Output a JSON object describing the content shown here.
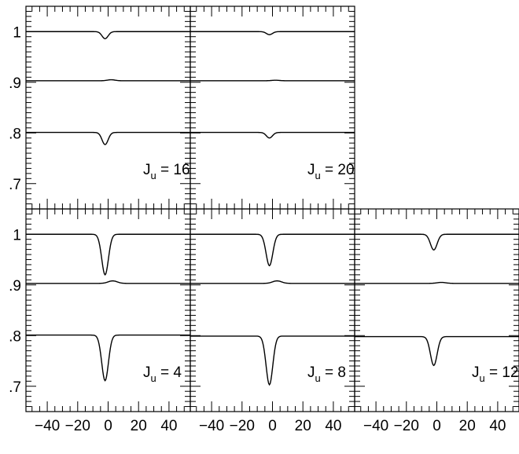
{
  "chart_data": {
    "type": "line",
    "xlim": [
      -54,
      54
    ],
    "ylim": [
      0.65,
      1.05
    ],
    "x_ticks": [
      -40,
      -20,
      0,
      20,
      40
    ],
    "x_tick_labels": [
      "−40",
      "−20",
      "0",
      "20",
      "40"
    ],
    "y_ticks": [
      0.7,
      0.8,
      0.9,
      1.0
    ],
    "y_tick_labels": [
      ".7",
      ".8",
      ".9",
      "1"
    ],
    "panels": [
      {
        "label_main": "J",
        "label_sub": "u",
        "label_value": "= 16",
        "row": 0,
        "col": 0,
        "series": [
          {
            "baseline": 1.0,
            "center": -2,
            "depth": -0.014,
            "width": 2.0
          },
          {
            "baseline": 0.903,
            "center": 2,
            "depth": 0.002,
            "width": 2.5
          },
          {
            "baseline": 0.801,
            "center": -2,
            "depth": -0.024,
            "width": 2.0
          }
        ]
      },
      {
        "label_main": "J",
        "label_sub": "u",
        "label_value": "= 20",
        "row": 0,
        "col": 1,
        "series": [
          {
            "baseline": 1.0,
            "center": -2,
            "depth": -0.006,
            "width": 2.0
          },
          {
            "baseline": 0.903,
            "center": 2,
            "depth": 0.001,
            "width": 2.5
          },
          {
            "baseline": 0.801,
            "center": -2,
            "depth": -0.011,
            "width": 2.0
          }
        ]
      },
      {
        "label_main": "J",
        "label_sub": "u",
        "label_value": "= 4",
        "row": 1,
        "col": 0,
        "series": [
          {
            "baseline": 1.0,
            "center": -2,
            "depth": -0.08,
            "width": 2.2
          },
          {
            "baseline": 0.903,
            "center": 3,
            "depth": 0.005,
            "width": 3.0
          },
          {
            "baseline": 0.801,
            "center": -2,
            "depth": -0.09,
            "width": 2.2
          }
        ]
      },
      {
        "label_main": "J",
        "label_sub": "u",
        "label_value": "= 8",
        "row": 1,
        "col": 1,
        "series": [
          {
            "baseline": 1.0,
            "center": -2,
            "depth": -0.062,
            "width": 2.2
          },
          {
            "baseline": 0.903,
            "center": 3,
            "depth": 0.005,
            "width": 3.0
          },
          {
            "baseline": 0.799,
            "center": -2,
            "depth": -0.096,
            "width": 2.2
          }
        ]
      },
      {
        "label_main": "J",
        "label_sub": "u",
        "label_value": "= 12",
        "row": 1,
        "col": 2,
        "series": [
          {
            "baseline": 1.0,
            "center": -2,
            "depth": -0.031,
            "width": 2.2
          },
          {
            "baseline": 0.903,
            "center": 3,
            "depth": 0.002,
            "width": 3.0
          },
          {
            "baseline": 0.798,
            "center": -2,
            "depth": -0.057,
            "width": 2.2
          }
        ]
      }
    ]
  }
}
